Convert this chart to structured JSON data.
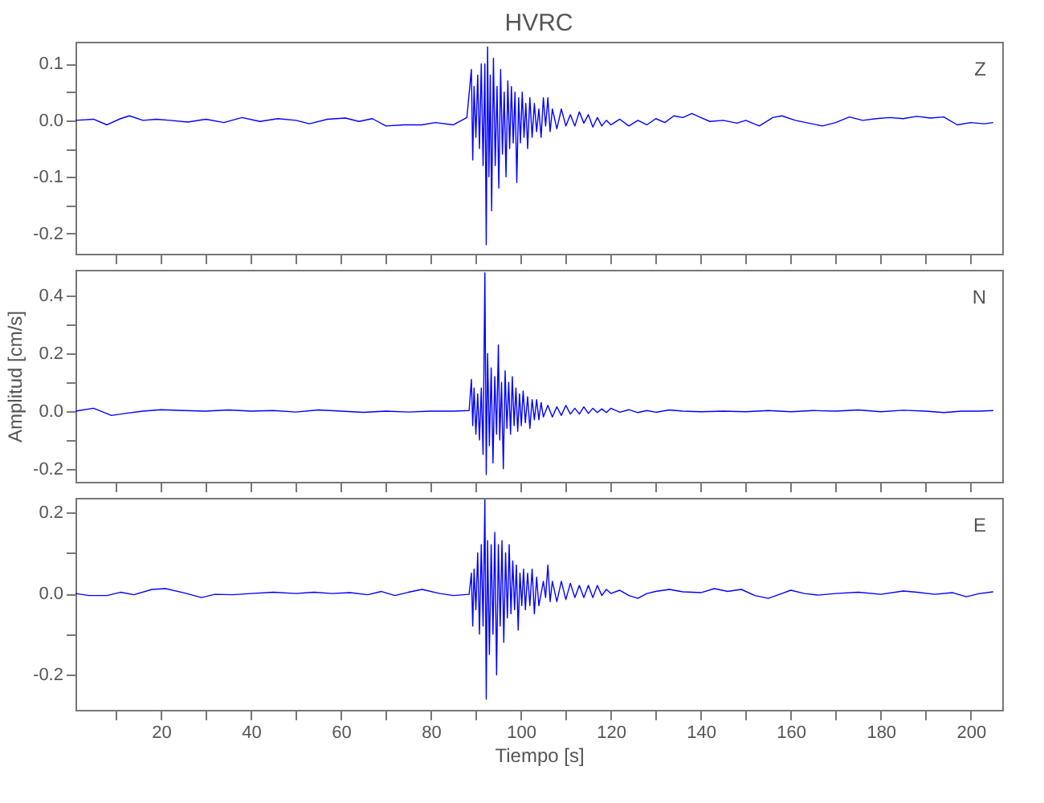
{
  "chart_data": [
    {
      "type": "line",
      "title": "HVRC",
      "annotations": [
        "Z"
      ],
      "xlim": [
        1,
        207
      ],
      "ylim": [
        -0.236,
        0.139
      ],
      "grid": false,
      "tick_labels": "y",
      "marker": "none",
      "line_style": "solid",
      "xticks": [
        {
          "value": 10,
          "label": null
        },
        20,
        {
          "value": 30,
          "label": null
        },
        40,
        {
          "value": 50,
          "label": null
        },
        60,
        {
          "value": 70,
          "label": null
        },
        80,
        {
          "value": 90,
          "label": null
        },
        100,
        {
          "value": 110,
          "label": null
        },
        120,
        {
          "value": 130,
          "label": null
        },
        140,
        {
          "value": 150,
          "label": null
        },
        160,
        {
          "value": 170,
          "label": null
        },
        180,
        {
          "value": 190,
          "label": null
        },
        200
      ],
      "yticks": [
        {
          "value": -0.2,
          "label": "-0.2"
        },
        {
          "value": -0.15,
          "label": null
        },
        {
          "value": -0.1,
          "label": "-0.1"
        },
        {
          "value": -0.05,
          "label": null
        },
        {
          "value": 0,
          "label": "0.0"
        },
        {
          "value": 0.05,
          "label": null
        },
        {
          "value": 0.1,
          "label": "0.1"
        }
      ],
      "series": [
        {
          "color": "#0000ff",
          "x": [
            1,
            5,
            8,
            11,
            13,
            16,
            19,
            22,
            26,
            30,
            34,
            38,
            42,
            46,
            50,
            53,
            57,
            61,
            64,
            67,
            70,
            74,
            78,
            81,
            85,
            88,
            89,
            89.3,
            89.6,
            90,
            90.4,
            90.8,
            91.2,
            91.6,
            92,
            92.3,
            92.6,
            92.9,
            93.2,
            93.5,
            93.9,
            94.3,
            94.7,
            95.1,
            95.5,
            95.9,
            96.3,
            96.7,
            97.1,
            97.5,
            97.9,
            98.3,
            98.7,
            99.1,
            99.5,
            99.9,
            100.3,
            100.7,
            101.1,
            101.5,
            102,
            102.5,
            103,
            103.5,
            104,
            104.5,
            105,
            105.5,
            106,
            106.5,
            107,
            108,
            109,
            110,
            111,
            112,
            113,
            114,
            115,
            116,
            117,
            118,
            119,
            120,
            122,
            124,
            126,
            128,
            130,
            132,
            134,
            136,
            138,
            140,
            142,
            145,
            148,
            150,
            153,
            156,
            158,
            161,
            164,
            167,
            170,
            173,
            176,
            179,
            182,
            185,
            188,
            191,
            194,
            197,
            200,
            203,
            205
          ],
          "values": [
            0.0,
            0.002,
            -0.008,
            0.003,
            0.008,
            0.0,
            0.002,
            0.0,
            -0.003,
            0.002,
            -0.004,
            0.005,
            -0.002,
            0.003,
            0.0,
            -0.006,
            0.002,
            0.004,
            -0.002,
            0.003,
            -0.01,
            -0.008,
            -0.008,
            -0.004,
            -0.008,
            0.005,
            0.09,
            -0.07,
            0.06,
            -0.03,
            0.08,
            -0.05,
            0.1,
            -0.08,
            0.1,
            -0.22,
            0.13,
            -0.1,
            0.08,
            -0.16,
            0.11,
            -0.08,
            0.06,
            -0.12,
            0.09,
            -0.06,
            0.05,
            -0.1,
            0.07,
            -0.05,
            0.06,
            -0.04,
            0.05,
            -0.11,
            0.04,
            -0.04,
            0.05,
            -0.03,
            0.03,
            -0.05,
            0.04,
            -0.03,
            0.03,
            -0.02,
            0.02,
            -0.03,
            0.04,
            -0.01,
            0.04,
            -0.02,
            0.02,
            -0.015,
            0.02,
            -0.01,
            0.01,
            -0.01,
            0.015,
            -0.005,
            0.01,
            -0.012,
            0.005,
            -0.01,
            0.0,
            -0.008,
            0.002,
            -0.01,
            0.0,
            -0.008,
            0.003,
            -0.004,
            0.008,
            0.005,
            0.012,
            0.005,
            -0.002,
            0.0,
            -0.005,
            0.0,
            -0.01,
            0.005,
            0.008,
            0.0,
            -0.005,
            -0.01,
            -0.004,
            0.006,
            0.0,
            0.003,
            0.005,
            0.003,
            0.007,
            0.004,
            0.006,
            -0.008,
            -0.004,
            -0.006,
            -0.004
          ]
        }
      ]
    },
    {
      "type": "line",
      "ylabel": "Amplitud [cm/s]",
      "annotations": [
        "N"
      ],
      "xlim": [
        1,
        207
      ],
      "ylim": [
        -0.245,
        0.49
      ],
      "grid": false,
      "tick_labels": "y",
      "marker": "none",
      "line_style": "solid",
      "xticks": [
        {
          "value": 10,
          "label": null
        },
        20,
        {
          "value": 30,
          "label": null
        },
        40,
        {
          "value": 50,
          "label": null
        },
        60,
        {
          "value": 70,
          "label": null
        },
        80,
        {
          "value": 90,
          "label": null
        },
        100,
        {
          "value": 110,
          "label": null
        },
        120,
        {
          "value": 130,
          "label": null
        },
        140,
        {
          "value": 150,
          "label": null
        },
        160,
        {
          "value": 170,
          "label": null
        },
        180,
        {
          "value": 190,
          "label": null
        },
        200
      ],
      "yticks": [
        {
          "value": -0.2,
          "label": "-0.2"
        },
        {
          "value": -0.1,
          "label": null
        },
        {
          "value": 0,
          "label": "0.0"
        },
        {
          "value": 0.1,
          "label": null
        },
        {
          "value": 0.2,
          "label": "0.2"
        },
        {
          "value": 0.3,
          "label": null
        },
        {
          "value": 0.4,
          "label": "0.4"
        }
      ],
      "series": [
        {
          "color": "#0000ff",
          "x": [
            1,
            5,
            9,
            12,
            16,
            20,
            25,
            30,
            35,
            40,
            45,
            50,
            55,
            60,
            65,
            70,
            75,
            80,
            85,
            88.5,
            89,
            89.3,
            89.6,
            90,
            90.4,
            90.8,
            91.2,
            91.6,
            92,
            92.3,
            92.6,
            93,
            93.4,
            93.8,
            94.2,
            94.6,
            95,
            95.3,
            95.7,
            96.1,
            96.5,
            96.9,
            97.3,
            97.7,
            98.1,
            98.5,
            98.9,
            99.3,
            99.7,
            100.1,
            100.5,
            101,
            101.5,
            102,
            102.5,
            103,
            103.5,
            104,
            104.5,
            105,
            106,
            107,
            108,
            109,
            110,
            111,
            112,
            113,
            114,
            115,
            116,
            117,
            118,
            119,
            120,
            122,
            124,
            126,
            128,
            130,
            133,
            136,
            140,
            145,
            150,
            155,
            160,
            165,
            170,
            175,
            180,
            185,
            190,
            194,
            198,
            202,
            205
          ],
          "values": [
            0.0,
            0.01,
            -0.015,
            -0.008,
            0.0,
            0.005,
            0.002,
            0.0,
            0.004,
            0.0,
            0.002,
            -0.003,
            0.004,
            0.0,
            -0.004,
            0.0,
            -0.003,
            0.0,
            0.0,
            0.002,
            0.11,
            -0.05,
            0.08,
            -0.08,
            0.06,
            -0.1,
            0.08,
            -0.15,
            0.48,
            -0.22,
            0.2,
            -0.12,
            0.15,
            -0.18,
            0.12,
            -0.08,
            0.23,
            -0.1,
            0.1,
            -0.2,
            0.14,
            -0.06,
            0.1,
            -0.08,
            0.12,
            -0.05,
            0.08,
            -0.07,
            0.06,
            -0.05,
            0.07,
            -0.04,
            0.05,
            -0.06,
            0.04,
            -0.03,
            0.04,
            -0.03,
            0.03,
            -0.02,
            0.02,
            -0.02,
            0.015,
            -0.015,
            0.02,
            -0.01,
            0.01,
            -0.01,
            0.015,
            -0.008,
            0.01,
            -0.005,
            0.008,
            -0.005,
            0.01,
            -0.004,
            0.005,
            -0.005,
            0.002,
            -0.004,
            0.004,
            0.0,
            -0.002,
            0.0,
            -0.002,
            0.002,
            -0.002,
            0.002,
            0.0,
            0.004,
            -0.002,
            0.003,
            0.0,
            -0.005,
            0.0,
            0.0,
            0.002
          ]
        }
      ]
    },
    {
      "type": "line",
      "xlabel": "Tiempo [s]",
      "annotations": [
        "E"
      ],
      "xlim": [
        1,
        207
      ],
      "ylim": [
        -0.286,
        0.235
      ],
      "grid": false,
      "marker": "none",
      "line_style": "solid",
      "xticks": [
        {
          "value": 10,
          "label": null
        },
        20,
        {
          "value": 30,
          "label": null
        },
        40,
        {
          "value": 50,
          "label": null
        },
        60,
        {
          "value": 70,
          "label": null
        },
        80,
        {
          "value": 90,
          "label": null
        },
        100,
        {
          "value": 110,
          "label": null
        },
        120,
        {
          "value": 130,
          "label": null
        },
        140,
        {
          "value": 150,
          "label": null
        },
        160,
        {
          "value": 170,
          "label": null
        },
        180,
        {
          "value": 190,
          "label": null
        },
        200
      ],
      "yticks": [
        {
          "value": -0.2,
          "label": "-0.2"
        },
        {
          "value": -0.1,
          "label": null
        },
        {
          "value": 0,
          "label": "0.0"
        },
        {
          "value": 0.1,
          "label": null
        },
        {
          "value": 0.2,
          "label": "0.2"
        }
      ],
      "series": [
        {
          "color": "#0000ff",
          "x": [
            1,
            4,
            8,
            11,
            14,
            18,
            21,
            25,
            29,
            32,
            36,
            40,
            45,
            50,
            54,
            58,
            62,
            66,
            69,
            72,
            75,
            78,
            82,
            85,
            88.5,
            89,
            89.3,
            89.6,
            90,
            90.4,
            90.8,
            91.2,
            91.6,
            92,
            92.3,
            92.6,
            93,
            93.4,
            93.8,
            94.2,
            94.6,
            95,
            95.4,
            95.8,
            96.2,
            96.6,
            97,
            97.4,
            97.8,
            98.2,
            98.6,
            99,
            99.4,
            99.8,
            100.2,
            100.6,
            101,
            101.5,
            102,
            102.5,
            103,
            103.5,
            104,
            105,
            105.5,
            106,
            106.5,
            107,
            108,
            109,
            110,
            111,
            112,
            113,
            114,
            115,
            116,
            117,
            118,
            119,
            120,
            122,
            124,
            126,
            128,
            130,
            133,
            136,
            140,
            143,
            146,
            149,
            152,
            155,
            158,
            160,
            163,
            166,
            170,
            175,
            180,
            185,
            188,
            192,
            196,
            199,
            202,
            205
          ],
          "values": [
            0.0,
            -0.005,
            -0.005,
            0.003,
            -0.003,
            0.01,
            0.012,
            0.002,
            -0.01,
            -0.002,
            -0.003,
            0.0,
            0.003,
            0.0,
            0.003,
            0.0,
            0.002,
            -0.003,
            0.005,
            -0.005,
            0.003,
            0.01,
            0.0,
            -0.005,
            -0.002,
            0.05,
            -0.08,
            0.06,
            -0.04,
            0.1,
            -0.1,
            0.12,
            -0.08,
            0.23,
            -0.26,
            0.13,
            -0.15,
            0.12,
            -0.1,
            0.15,
            -0.2,
            0.12,
            -0.08,
            0.13,
            -0.12,
            0.1,
            -0.06,
            0.12,
            -0.05,
            0.08,
            -0.04,
            0.07,
            -0.09,
            0.05,
            -0.03,
            0.06,
            -0.04,
            0.05,
            -0.03,
            0.06,
            -0.05,
            0.04,
            -0.03,
            0.03,
            -0.01,
            0.07,
            -0.02,
            0.03,
            -0.02,
            0.03,
            -0.015,
            0.025,
            -0.01,
            0.02,
            -0.01,
            0.02,
            -0.01,
            0.02,
            -0.005,
            0.01,
            0.0,
            0.008,
            -0.005,
            -0.012,
            0.0,
            0.005,
            0.01,
            0.004,
            0.002,
            0.012,
            0.005,
            0.01,
            -0.005,
            -0.012,
            0.0,
            0.008,
            0.0,
            -0.004,
            0.0,
            0.003,
            -0.002,
            0.006,
            0.003,
            -0.002,
            0.002,
            -0.008,
            0.0,
            0.004
          ]
        }
      ]
    }
  ]
}
